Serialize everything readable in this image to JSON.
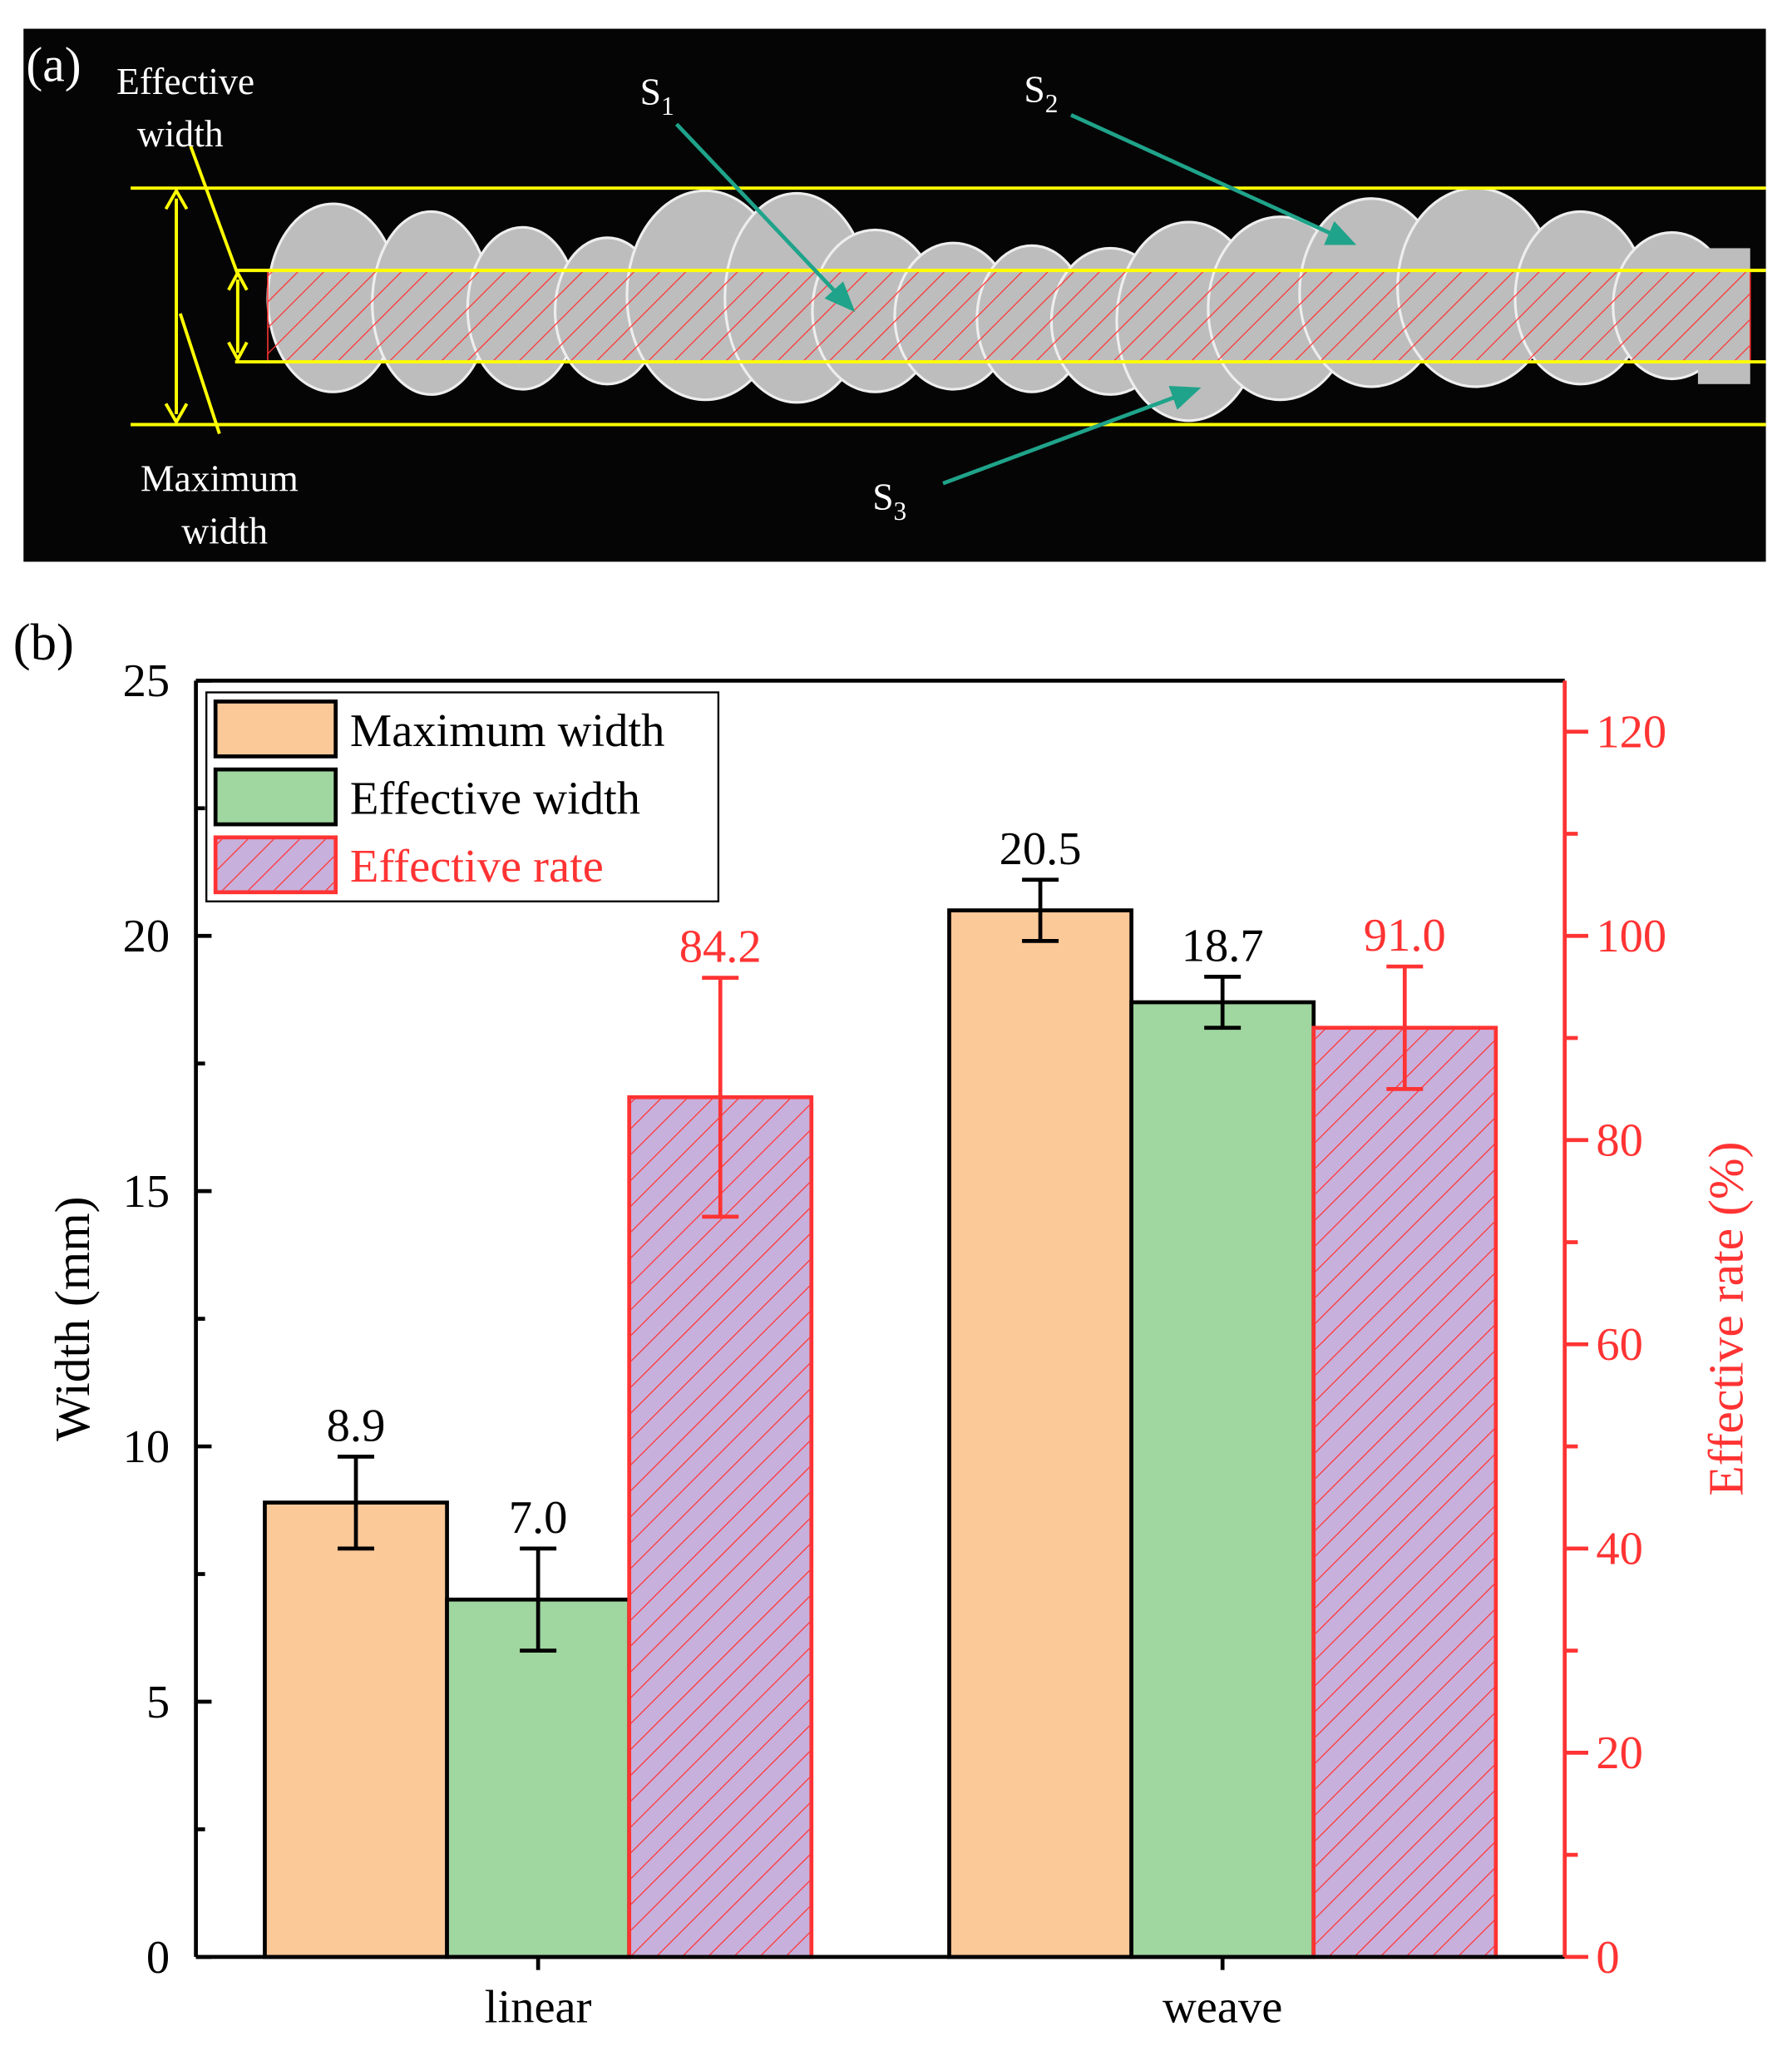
{
  "panel_a": {
    "tag": "(a)",
    "effective_label": [
      "Effective",
      "width"
    ],
    "maximum_label": [
      "Maximum",
      "width"
    ],
    "regions": [
      {
        "text": "S",
        "sub": "1"
      },
      {
        "text": "S",
        "sub": "2"
      },
      {
        "text": "S",
        "sub": "3"
      }
    ]
  },
  "chart_data": {
    "type": "bar",
    "tag": "(b)",
    "categories": [
      "linear",
      "weave"
    ],
    "ylabel": "Width (mm)",
    "y2label": "Effective rate (%)",
    "ylim": [
      0,
      25
    ],
    "yticks": [
      0,
      5,
      10,
      15,
      20,
      25
    ],
    "y2lim": [
      0,
      125
    ],
    "y2ticks": [
      0,
      20,
      40,
      60,
      80,
      100,
      120
    ],
    "axis2_color": "#ff3333",
    "legend": "upper left",
    "series": [
      {
        "name": "Maximum width",
        "color": "#fbc898",
        "edgecolor": "#000000",
        "values": [
          8.9,
          20.5
        ],
        "errors": [
          0.9,
          0.6
        ],
        "value_labels": [
          "8.9",
          "20.5"
        ]
      },
      {
        "name": "Effective width",
        "color": "#a0d6a0",
        "edgecolor": "#000000",
        "values": [
          7.0,
          18.7
        ],
        "errors": [
          1.0,
          0.5
        ],
        "value_labels": [
          "7.0",
          "18.7"
        ]
      },
      {
        "name": "Effective rate",
        "color": "#c8b0dc",
        "edgecolor": "#ff3333",
        "hatch": true,
        "axis": "y2",
        "values": [
          84.2,
          91.0
        ],
        "errors": [
          11.7,
          6.0
        ],
        "value_labels": [
          "84.2",
          "91.0"
        ]
      }
    ]
  }
}
